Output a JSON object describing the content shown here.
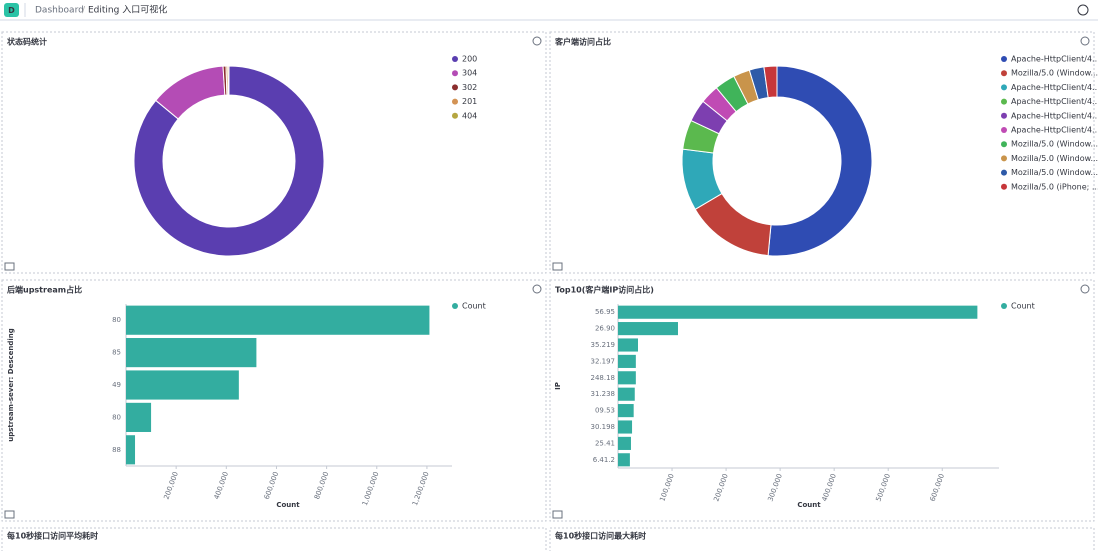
{
  "header": {
    "avatar": "D",
    "breadcrumb": "Dashboard",
    "separator": "/",
    "current": "Editing 入口可视化"
  },
  "chart_data": [
    {
      "type": "pie",
      "title": "状态码统计",
      "categories": [
        "200",
        "304",
        "302",
        "201",
        "404"
      ],
      "values": [
        86,
        13,
        0.5,
        0.3,
        0.2
      ],
      "colors": [
        "#5a3eb0",
        "#b44cb5",
        "#8b2e2e",
        "#d39355",
        "#b5a640"
      ]
    },
    {
      "type": "pie",
      "title": "客户端访问占比",
      "categories": [
        "Apache-HttpClient/4...",
        "Mozilla/5.0 (Window...",
        "Apache-HttpClient/4...",
        "Apache-HttpClient/4...",
        "Apache-HttpClient/4...",
        "Apache-HttpClient/4...",
        "Mozilla/5.0 (Window...",
        "Mozilla/5.0 (Window...",
        "Mozilla/5.0 (Window...",
        "Mozilla/5.0 (iPhone; ..."
      ],
      "values": [
        51.5,
        15,
        10.5,
        5,
        3.8,
        3.2,
        3.5,
        2.8,
        2.5,
        2.2
      ],
      "colors": [
        "#2f4cb3",
        "#c0413a",
        "#2fa8b8",
        "#5bb94e",
        "#7d3fb0",
        "#c04bb4",
        "#40b45a",
        "#c9944b",
        "#2e5aa8",
        "#c6363a"
      ]
    },
    {
      "type": "hbar",
      "title": "后端upstream占比",
      "categories": [
        "80",
        "85",
        "49",
        "80",
        "88"
      ],
      "series": [
        {
          "name": "Count",
          "color": "#33ada0",
          "values": [
            1210000,
            520000,
            450000,
            100000,
            36000
          ]
        }
      ],
      "xlim": [
        0,
        1300000
      ],
      "xticks": [
        {
          "value": 200000,
          "label": "200,000"
        },
        {
          "value": 400000,
          "label": "400,000"
        },
        {
          "value": 600000,
          "label": "600,000"
        },
        {
          "value": 800000,
          "label": "800,000"
        },
        {
          "value": 1000000,
          "label": "1,000,000"
        },
        {
          "value": 1200000,
          "label": "1,200,000"
        }
      ],
      "xlabel": "Count",
      "ylabel": "upstream-sever: Descending"
    },
    {
      "type": "hbar",
      "title": "Top10(客户端IP访问占比)",
      "categories": [
        "56.95",
        "26.90",
        "35.219",
        "32.197",
        "248.18",
        "31.238",
        "09.53",
        "30.198",
        "25.41",
        "6.41.2"
      ],
      "series": [
        {
          "name": "Count",
          "color": "#33ada0",
          "values": [
            665000,
            111000,
            37000,
            33000,
            33000,
            31000,
            29000,
            26000,
            24000,
            22000
          ]
        }
      ],
      "xlim": [
        0,
        705000
      ],
      "xticks": [
        {
          "value": 100000,
          "label": "100,000"
        },
        {
          "value": 200000,
          "label": "200,000"
        },
        {
          "value": 300000,
          "label": "300,000"
        },
        {
          "value": 400000,
          "label": "400,000"
        },
        {
          "value": 500000,
          "label": "500,000"
        },
        {
          "value": 600000,
          "label": "600,000"
        }
      ],
      "xlabel": "Count",
      "ylabel": "IP"
    }
  ],
  "bottom_panels": [
    "每10秒接口访问平均耗时",
    "每10秒接口访问最大耗时"
  ]
}
